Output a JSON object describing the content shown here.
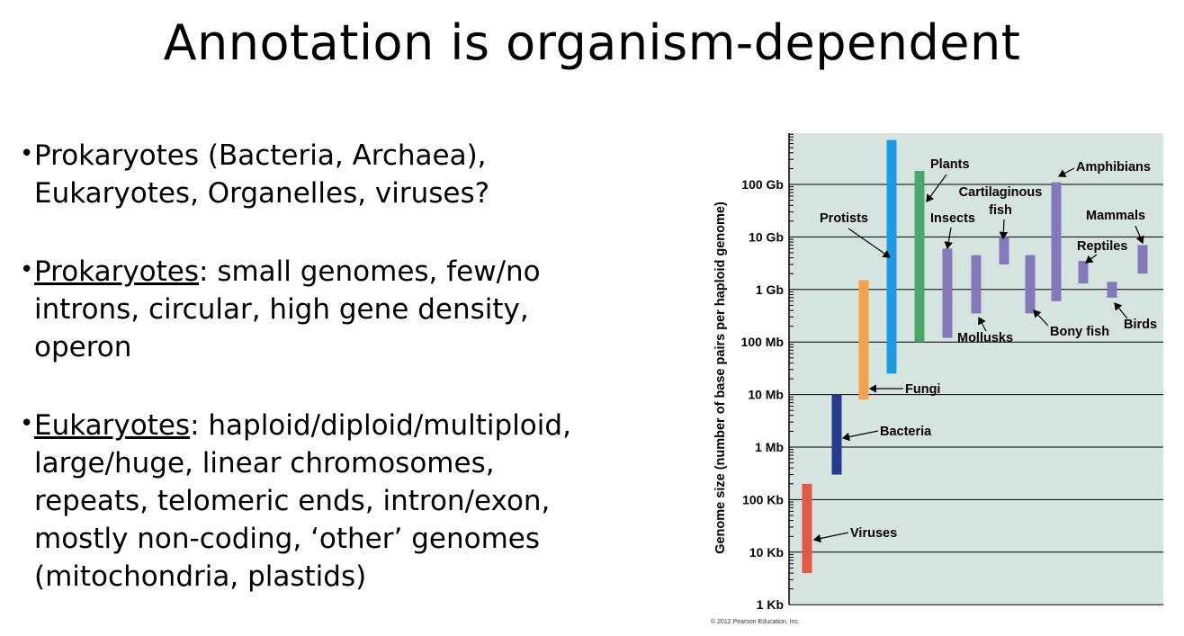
{
  "slide": {
    "title": "Annotation is organism-dependent"
  },
  "bullets": [
    {
      "lines": [
        "Prokaryotes (Bacteria, Archaea),",
        "Eukaryotes, Organelles, viruses?"
      ]
    },
    {
      "term": "Prokaryotes",
      "rest_first": ": small genomes, few/no",
      "lines": [
        "introns, circular, high gene density,",
        "operon"
      ]
    },
    {
      "term": "Eukaryotes",
      "rest_first": ": haploid/diploid/multiploid,",
      "lines": [
        "large/huge, linear chromosomes,",
        "repeats, telomeric ends, intron/exon,",
        "mostly non-coding, ‘other’ genomes",
        "(mitochondria, plastids)"
      ]
    }
  ],
  "chart_data": {
    "type": "bar",
    "orientation": "range",
    "ylabel": "Genome size (number of base pairs per haploid genome)",
    "scale": "log10",
    "ylim": [
      1000,
      1000000000000
    ],
    "yticks": [
      {
        "value": 1000,
        "label": "1 Kb"
      },
      {
        "value": 10000,
        "label": "10 Kb"
      },
      {
        "value": 100000,
        "label": "100 Kb"
      },
      {
        "value": 1000000,
        "label": "1 Mb"
      },
      {
        "value": 10000000,
        "label": "10 Mb"
      },
      {
        "value": 100000000,
        "label": "100 Mb"
      },
      {
        "value": 1000000000,
        "label": "1 Gb"
      },
      {
        "value": 10000000000,
        "label": "10 Gb"
      },
      {
        "value": 100000000000,
        "label": "100 Gb"
      }
    ],
    "grid": true,
    "background_color": "#d6e4e0",
    "series": [
      {
        "name": "Viruses",
        "min": 4000,
        "max": 200000,
        "color": "#e05a47"
      },
      {
        "name": "Bacteria",
        "min": 300000,
        "max": 10000000,
        "color": "#253a8a"
      },
      {
        "name": "Fungi",
        "min": 8000000,
        "max": 1500000000,
        "color": "#f2a24a"
      },
      {
        "name": "Protists",
        "min": 25000000,
        "max": 700000000000,
        "color": "#1e9be0"
      },
      {
        "name": "Plants",
        "min": 100000000,
        "max": 180000000000,
        "color": "#4aa86a"
      },
      {
        "name": "Insects",
        "min": 120000000,
        "max": 6000000000,
        "color": "#8479b8"
      },
      {
        "name": "Mollusks",
        "min": 350000000,
        "max": 4500000000,
        "color": "#8479b8"
      },
      {
        "name": "Cartilaginous fish",
        "min": 3000000000,
        "max": 10000000000,
        "color": "#8479b8"
      },
      {
        "name": "Bony fish",
        "min": 350000000,
        "max": 4500000000,
        "color": "#8479b8"
      },
      {
        "name": "Amphibians",
        "min": 600000000,
        "max": 110000000000,
        "color": "#8479b8"
      },
      {
        "name": "Reptiles",
        "min": 1300000000,
        "max": 3500000000,
        "color": "#8479b8"
      },
      {
        "name": "Birds",
        "min": 700000000,
        "max": 1400000000,
        "color": "#8479b8"
      },
      {
        "name": "Mammals",
        "min": 2000000000,
        "max": 7000000000,
        "color": "#8479b8"
      }
    ],
    "copyright": "© 2012 Pearson Education, Inc."
  }
}
